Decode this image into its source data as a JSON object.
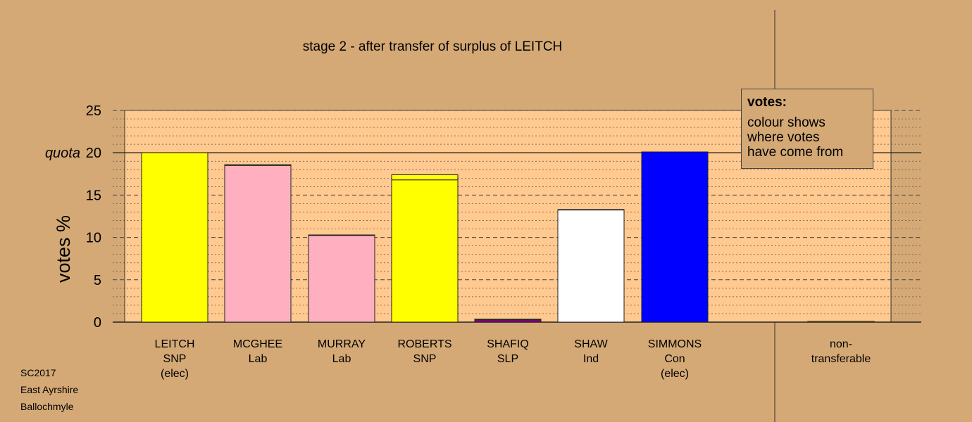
{
  "chart_data": {
    "type": "bar",
    "title": "stage 2 - after transfer of surplus of LEITCH",
    "ylabel": "votes %",
    "ylim": [
      0,
      25
    ],
    "yticks": [
      0,
      5,
      10,
      15,
      20,
      25
    ],
    "quota": 20,
    "quota_label": "quota",
    "grid": true,
    "categories": [
      {
        "lines": [
          "LEITCH",
          "SNP",
          "(elec)"
        ]
      },
      {
        "lines": [
          "MCGHEE",
          "Lab"
        ]
      },
      {
        "lines": [
          "MURRAY",
          "Lab"
        ]
      },
      {
        "lines": [
          "ROBERTS",
          "SNP"
        ]
      },
      {
        "lines": [
          "SHAFIQ",
          "SLP"
        ]
      },
      {
        "lines": [
          "SHAW",
          "Ind"
        ]
      },
      {
        "lines": [
          "SIMMONS",
          "Con",
          "(elec)"
        ]
      },
      {
        "lines": [
          "non-",
          "transferable"
        ]
      }
    ],
    "values": [
      20.0,
      18.6,
      10.3,
      17.4,
      0.35,
      13.3,
      20.1,
      0.1
    ],
    "segments": [
      [
        {
          "from": "LEITCH",
          "value": 20.0,
          "color": "#ffff00"
        }
      ],
      [
        {
          "from": "MCGHEE",
          "value": 18.5,
          "color": "#ffafbf"
        },
        {
          "from": "LEITCH",
          "value": 0.1,
          "color": "#ffff00"
        }
      ],
      [
        {
          "from": "MURRAY",
          "value": 10.25,
          "color": "#ffafbf"
        },
        {
          "from": "LEITCH",
          "value": 0.05,
          "color": "#ffff00"
        }
      ],
      [
        {
          "from": "ROBERTS",
          "value": 16.8,
          "color": "#ffff00"
        },
        {
          "from": "LEITCH",
          "value": 0.6,
          "color": "#ffff00"
        }
      ],
      [
        {
          "from": "SHAFIQ",
          "value": 0.33,
          "color": "#800080"
        },
        {
          "from": "LEITCH",
          "value": 0.02,
          "color": "#ffff00"
        }
      ],
      [
        {
          "from": "SHAW",
          "value": 13.25,
          "color": "#ffffff"
        },
        {
          "from": "LEITCH",
          "value": 0.05,
          "color": "#ffff00"
        }
      ],
      [
        {
          "from": "SIMMONS",
          "value": 20.1,
          "color": "#0000ff"
        }
      ],
      [
        {
          "from": "LEITCH",
          "value": 0.1,
          "color": "#ffff00"
        }
      ]
    ]
  },
  "legend": {
    "heading": "votes:",
    "lines": [
      "colour shows",
      "where votes",
      "have come from"
    ]
  },
  "footer": [
    "SC2017",
    "East Ayrshire",
    "Ballochmyle"
  ]
}
